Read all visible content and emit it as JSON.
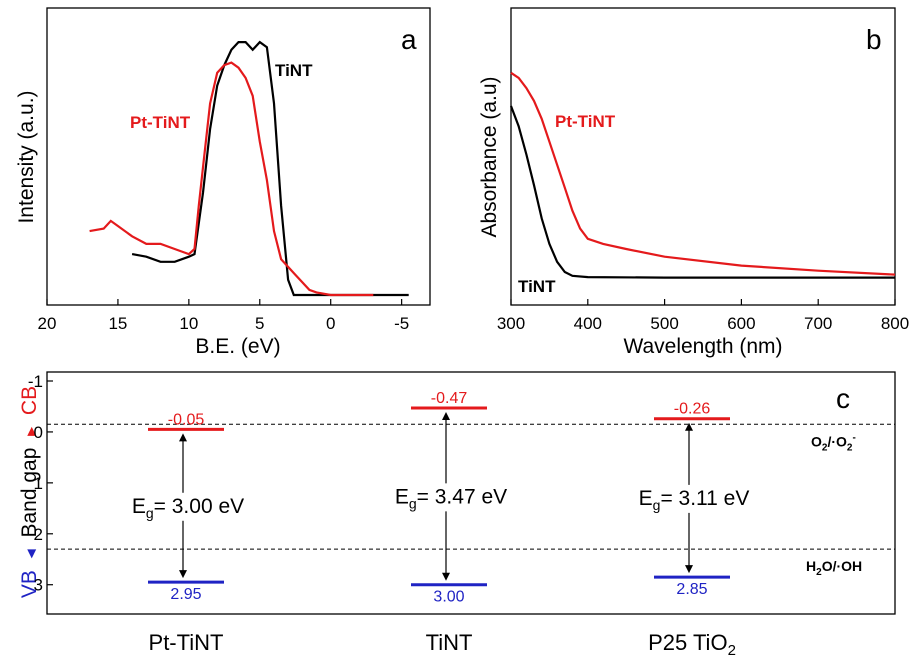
{
  "chart_data": [
    {
      "type": "line",
      "panel": "a",
      "xlabel": "B.E. (eV)",
      "ylabel": "Intensity (a.u.)",
      "xlim": [
        20,
        -7
      ],
      "xticks": [
        "20",
        "15",
        "10",
        "5",
        "0",
        "-5"
      ],
      "xtick_values": [
        20,
        15,
        10,
        5,
        0,
        -5
      ],
      "ylim": [
        0,
        1.0
      ],
      "grid": false,
      "series": [
        {
          "name": "TiNT",
          "color": "#000000",
          "points": [
            [
              14,
              0.16
            ],
            [
              13,
              0.15
            ],
            [
              12,
              0.13
            ],
            [
              11,
              0.13
            ],
            [
              10,
              0.15
            ],
            [
              9.6,
              0.16
            ],
            [
              9,
              0.4
            ],
            [
              8.5,
              0.65
            ],
            [
              8,
              0.82
            ],
            [
              7.5,
              0.9
            ],
            [
              7,
              0.96
            ],
            [
              6.5,
              0.99
            ],
            [
              6,
              0.99
            ],
            [
              5.5,
              0.96
            ],
            [
              5,
              0.99
            ],
            [
              4.5,
              0.97
            ],
            [
              4,
              0.75
            ],
            [
              3.5,
              0.35
            ],
            [
              3,
              0.06
            ],
            [
              2.6,
              0.0
            ],
            [
              1,
              0.0
            ],
            [
              -5.5,
              0.0
            ]
          ]
        },
        {
          "name": "Pt-TiNT",
          "color": "#e41a1c",
          "points": [
            [
              17,
              0.25
            ],
            [
              16,
              0.26
            ],
            [
              15.5,
              0.29
            ],
            [
              15,
              0.27
            ],
            [
              14,
              0.23
            ],
            [
              13,
              0.2
            ],
            [
              12,
              0.2
            ],
            [
              11,
              0.18
            ],
            [
              10,
              0.16
            ],
            [
              9.6,
              0.18
            ],
            [
              9.3,
              0.35
            ],
            [
              9,
              0.5
            ],
            [
              8.5,
              0.75
            ],
            [
              8,
              0.87
            ],
            [
              7.5,
              0.9
            ],
            [
              7,
              0.91
            ],
            [
              6.5,
              0.89
            ],
            [
              6,
              0.85
            ],
            [
              5.5,
              0.78
            ],
            [
              5,
              0.6
            ],
            [
              4.5,
              0.45
            ],
            [
              4,
              0.25
            ],
            [
              3.5,
              0.14
            ],
            [
              3,
              0.11
            ],
            [
              2.5,
              0.08
            ],
            [
              2,
              0.05
            ],
            [
              1.5,
              0.02
            ],
            [
              1,
              0.01
            ],
            [
              0,
              0.0
            ],
            [
              -3,
              0.0
            ]
          ]
        }
      ],
      "panel_label": "a"
    },
    {
      "type": "line",
      "panel": "b",
      "xlabel": "Wavelength (nm)",
      "ylabel": "Absorbance (a.u)",
      "xlim": [
        300,
        800
      ],
      "xticks": [
        "300",
        "400",
        "500",
        "600",
        "700",
        "800"
      ],
      "xtick_values": [
        300,
        400,
        500,
        600,
        700,
        800
      ],
      "ylim": [
        0,
        1.0
      ],
      "grid": false,
      "series": [
        {
          "name": "TiNT",
          "color": "#000000",
          "points": [
            [
              300,
              0.74
            ],
            [
              310,
              0.66
            ],
            [
              320,
              0.55
            ],
            [
              330,
              0.43
            ],
            [
              340,
              0.3
            ],
            [
              350,
              0.2
            ],
            [
              360,
              0.13
            ],
            [
              370,
              0.09
            ],
            [
              380,
              0.075
            ],
            [
              400,
              0.07
            ],
            [
              500,
              0.068
            ],
            [
              800,
              0.068
            ]
          ]
        },
        {
          "name": "Pt-TiNT",
          "color": "#e41a1c",
          "points": [
            [
              300,
              0.87
            ],
            [
              310,
              0.85
            ],
            [
              320,
              0.81
            ],
            [
              330,
              0.76
            ],
            [
              340,
              0.69
            ],
            [
              350,
              0.6
            ],
            [
              360,
              0.51
            ],
            [
              370,
              0.42
            ],
            [
              380,
              0.33
            ],
            [
              390,
              0.26
            ],
            [
              400,
              0.22
            ],
            [
              420,
              0.2
            ],
            [
              450,
              0.18
            ],
            [
              500,
              0.15
            ],
            [
              600,
              0.115
            ],
            [
              700,
              0.095
            ],
            [
              800,
              0.08
            ]
          ]
        }
      ],
      "panel_label": "b"
    },
    {
      "type": "band-diagram",
      "panel": "c",
      "panel_label": "c",
      "ylim": [
        -1,
        3.3
      ],
      "yticks": [
        "-1",
        "0",
        "1",
        "2",
        "3"
      ],
      "ytick_values": [
        -1,
        0,
        1,
        2,
        3
      ],
      "ylabel_parts": {
        "vb": "VB",
        "mid": "Band gap",
        "cb": "CB"
      },
      "redox_levels": [
        {
          "value": -0.15,
          "label_main": "O",
          "label_sub1": "2",
          "label_mid": "/·O",
          "label_sub2": "2",
          "label_sup": "-"
        },
        {
          "value": 2.3,
          "label_main": "H",
          "label_sub1": "2",
          "label_mid": "O/·OH",
          "label_sub2": "",
          "label_sup": ""
        }
      ],
      "materials": [
        {
          "name": "Pt-TiNT",
          "name_sub": "",
          "cb": -0.05,
          "vb": 2.95,
          "cb_label": "-0.05",
          "vb_label": "2.95",
          "eg_text": "= 3.00 eV"
        },
        {
          "name": "TiNT",
          "name_sub": "",
          "cb": -0.47,
          "vb": 3.0,
          "cb_label": "-0.47",
          "vb_label": "3.00",
          "eg_text": "= 3.47 eV"
        },
        {
          "name": "P25 TiO",
          "name_sub": "2",
          "cb": -0.26,
          "vb": 2.85,
          "cb_label": "-0.26",
          "vb_label": "2.85",
          "eg_text": "= 3.11 eV"
        }
      ],
      "eg_symbol": "E",
      "eg_sub": "g",
      "colors": {
        "cb": "#e41a1c",
        "vb": "#1f23c4"
      }
    }
  ]
}
